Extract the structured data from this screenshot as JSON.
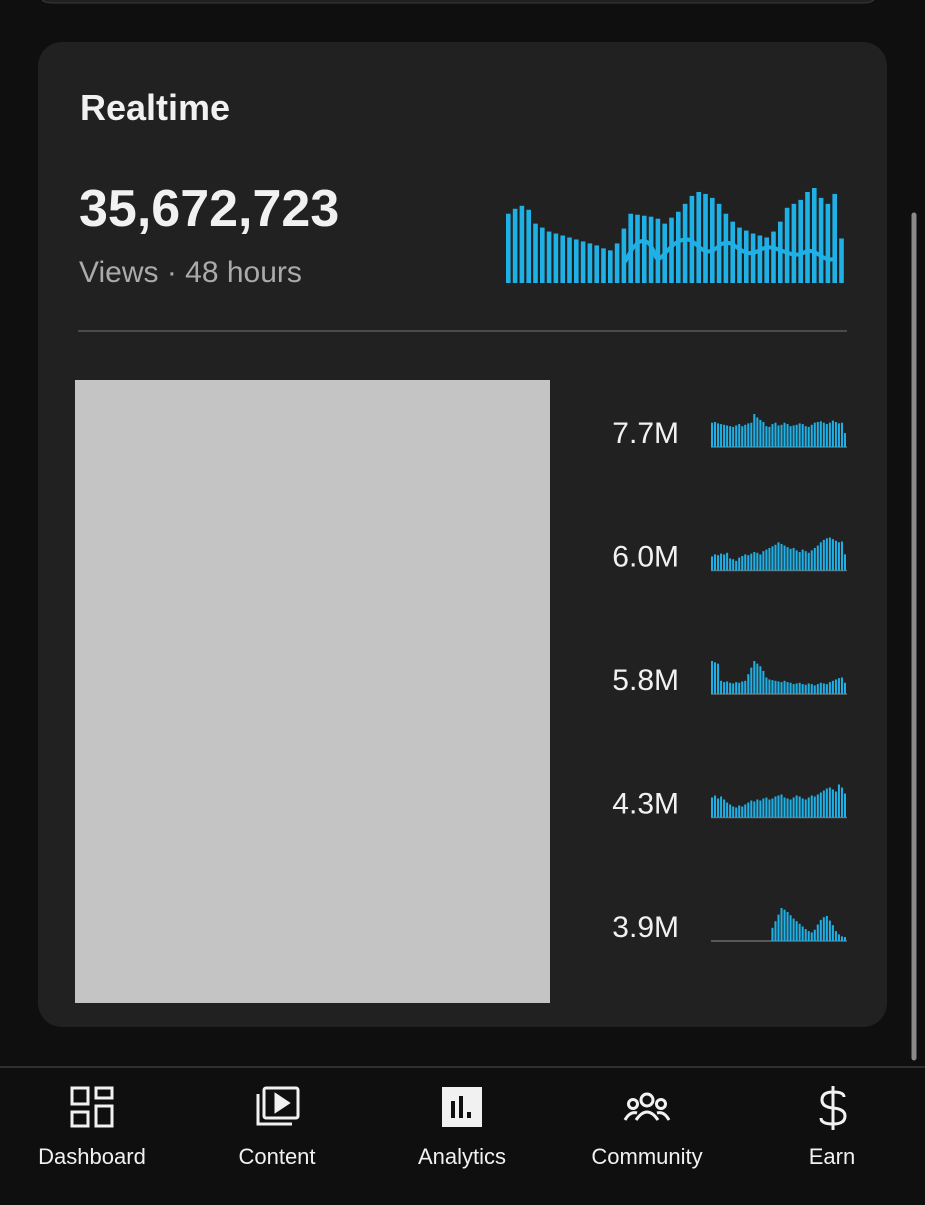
{
  "header": {
    "title": "Realtime"
  },
  "summary": {
    "total": "35,672,723",
    "caption": "Views · 48 hours",
    "sparkline": [
      70,
      75,
      78,
      74,
      60,
      56,
      52,
      50,
      48,
      46,
      44,
      42,
      40,
      38,
      35,
      33,
      40,
      55,
      70,
      69,
      68,
      67,
      65,
      60,
      66,
      72,
      80,
      88,
      92,
      90,
      86,
      80,
      70,
      62,
      56,
      53,
      50,
      48,
      46,
      52,
      62,
      76,
      80,
      84,
      92,
      96,
      86,
      80,
      90,
      45
    ]
  },
  "videos": [
    {
      "views": "7.7M",
      "sparkline": [
        70,
        72,
        68,
        66,
        64,
        62,
        60,
        58,
        62,
        66,
        60,
        64,
        68,
        70,
        95,
        85,
        78,
        72,
        60,
        58,
        66,
        70,
        62,
        64,
        70,
        66,
        60,
        62,
        64,
        68,
        66,
        60,
        58,
        64,
        70,
        72,
        74,
        70,
        66,
        70,
        76,
        72,
        68,
        70,
        40
      ]
    },
    {
      "views": "6.0M",
      "sparkline": [
        35,
        40,
        38,
        42,
        40,
        44,
        30,
        28,
        24,
        32,
        36,
        40,
        38,
        42,
        46,
        44,
        40,
        48,
        52,
        56,
        60,
        64,
        70,
        66,
        62,
        58,
        54,
        56,
        50,
        46,
        52,
        48,
        44,
        50,
        56,
        62,
        70,
        76,
        80,
        82,
        78,
        74,
        70,
        72,
        40
      ]
    },
    {
      "views": "5.8M",
      "sparkline": [
        100,
        96,
        92,
        40,
        36,
        38,
        34,
        32,
        36,
        34,
        38,
        40,
        60,
        80,
        100,
        92,
        84,
        70,
        50,
        44,
        42,
        40,
        38,
        36,
        40,
        36,
        34,
        30,
        32,
        34,
        30,
        28,
        32,
        30,
        26,
        30,
        34,
        32,
        30,
        36,
        40,
        44,
        48,
        50,
        34
      ]
    },
    {
      "views": "4.3M",
      "sparkline": [
        40,
        44,
        38,
        42,
        36,
        30,
        26,
        22,
        20,
        24,
        22,
        26,
        30,
        34,
        32,
        36,
        34,
        38,
        40,
        36,
        38,
        42,
        44,
        46,
        40,
        38,
        36,
        40,
        44,
        42,
        38,
        36,
        40,
        44,
        42,
        46,
        50,
        54,
        58,
        60,
        56,
        52,
        66,
        60,
        48
      ]
    },
    {
      "views": "3.9M",
      "sparkline": [
        0,
        0,
        0,
        0,
        0,
        0,
        0,
        0,
        0,
        0,
        0,
        0,
        0,
        0,
        0,
        0,
        0,
        0,
        0,
        0,
        40,
        60,
        80,
        100,
        95,
        88,
        78,
        68,
        60,
        52,
        44,
        36,
        30,
        26,
        34,
        50,
        64,
        72,
        76,
        62,
        48,
        30,
        20,
        14,
        12
      ]
    }
  ],
  "nav": [
    {
      "label": "Dashboard"
    },
    {
      "label": "Content"
    },
    {
      "label": "Analytics"
    },
    {
      "label": "Community"
    },
    {
      "label": "Earn"
    }
  ]
}
